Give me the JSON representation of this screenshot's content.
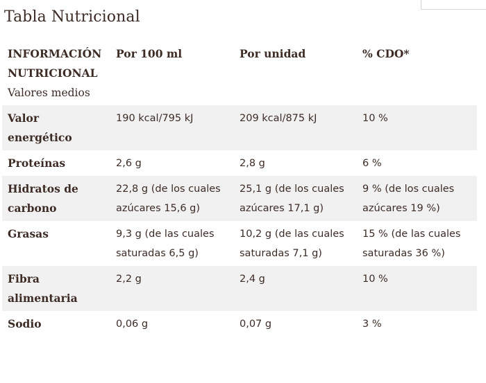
{
  "page": {
    "title": "Tabla Nutricional"
  },
  "table": {
    "headers": {
      "col1": "INFORMACIÓN NUTRICIONAL",
      "col1_sub": "Valores medios",
      "col2": "Por 100 ml",
      "col3": "Por unidad",
      "col4": "% CDO*"
    },
    "rows": [
      {
        "label": "Valor energético",
        "per_100ml": "190 kcal/795 kJ",
        "per_unit": "209 kcal/875 kJ",
        "cdo": "10 %"
      },
      {
        "label": "Proteínas",
        "per_100ml": "2,6 g",
        "per_unit": "2,8 g",
        "cdo": "6 %"
      },
      {
        "label": "Hidratos de carbono",
        "per_100ml": "22,8 g (de los cuales azúcares 15,6 g)",
        "per_unit": "25,1 g (de los cuales azúcares 17,1 g)",
        "cdo": "9 % (de los cuales azúcares 19 %)"
      },
      {
        "label": "Grasas",
        "per_100ml": "9,3 g (de las cuales saturadas 6,5 g)",
        "per_unit": "10,2 g (de las cuales saturadas 7,1 g)",
        "cdo": "15 % (de las cuales saturadas 36 %)"
      },
      {
        "label": "Fibra alimentaria",
        "per_100ml": "2,2 g",
        "per_unit": "2,4 g",
        "cdo": "10 %"
      },
      {
        "label": "Sodio",
        "per_100ml": "0,06 g",
        "per_unit": "0,07 g",
        "cdo": "3 %"
      }
    ]
  }
}
